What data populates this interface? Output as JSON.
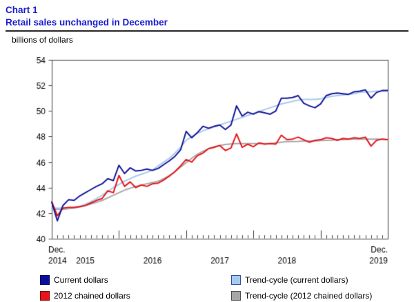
{
  "header": {
    "chart_label": "Chart 1",
    "title": "Retail sales unchanged in December"
  },
  "colors": {
    "title_blue": "#1c1cce",
    "axis": "#3c3c3c",
    "tick_text": "#000000",
    "rule": "#262626"
  },
  "legend": {
    "items": [
      {
        "label": "Current dollars",
        "swatch_color": "#0d0d9d",
        "swatch_border": "#00005a"
      },
      {
        "label": "Trend-cycle (current dollars)",
        "swatch_color": "#a6c9ee",
        "swatch_border": "#2f4f9e"
      },
      {
        "label": "2012 chained dollars",
        "swatch_color": "#e8131b",
        "swatch_border": "#7c0b0b"
      },
      {
        "label": "Trend-cycle (2012 chained dollars)",
        "swatch_color": "#a6a6a6",
        "swatch_border": "#4d4d4d"
      }
    ]
  },
  "chart_data": {
    "type": "line",
    "chart_label": "Chart 1",
    "title": "Retail sales unchanged in December",
    "ylabel": "billions of dollars",
    "ylim": [
      40,
      54
    ],
    "yticks": [
      40,
      42,
      44,
      46,
      48,
      50,
      52,
      54
    ],
    "grid": false,
    "legend_position": "bottom",
    "x_axis": {
      "start": "2014-12",
      "end": "2019-12",
      "points": 61,
      "minor_tick_every_months": 1,
      "major_tick_every_months": 12,
      "first_tick_label": [
        "Dec.",
        "2014"
      ],
      "last_tick_label": [
        "Dec.",
        "2019"
      ],
      "year_labels": [
        "2015",
        "2016",
        "2017",
        "2018"
      ]
    },
    "series": [
      {
        "name": "Current dollars",
        "color": "#14149c",
        "values": [
          42.85,
          41.4,
          42.6,
          43.05,
          43.0,
          43.35,
          43.6,
          43.85,
          44.1,
          44.3,
          44.7,
          44.55,
          45.75,
          45.1,
          45.55,
          45.3,
          45.35,
          45.45,
          45.35,
          45.5,
          45.8,
          46.1,
          46.45,
          46.95,
          48.4,
          47.9,
          48.3,
          48.8,
          48.65,
          48.8,
          48.9,
          48.55,
          48.9,
          50.4,
          49.6,
          49.9,
          49.75,
          49.95,
          49.85,
          49.75,
          50.0,
          51.0,
          51.0,
          51.05,
          51.2,
          50.6,
          50.4,
          50.25,
          50.55,
          51.2,
          51.35,
          51.4,
          51.35,
          51.3,
          51.5,
          51.55,
          51.65,
          51.0,
          51.45,
          51.6,
          51.6
        ]
      },
      {
        "name": "Trend-cycle (current dollars)",
        "color": "#a6c9ee",
        "values": [
          42.4,
          42.4,
          42.4,
          42.4,
          42.45,
          42.55,
          42.7,
          42.9,
          43.15,
          43.4,
          43.7,
          44.0,
          44.25,
          44.5,
          44.7,
          44.9,
          45.05,
          45.2,
          45.35,
          45.7,
          46.0,
          46.3,
          46.7,
          47.15,
          47.7,
          48.0,
          48.25,
          48.45,
          48.6,
          48.75,
          48.9,
          49.05,
          49.2,
          49.35,
          49.5,
          49.65,
          49.8,
          49.95,
          50.1,
          50.25,
          50.4,
          50.55,
          50.65,
          50.75,
          50.85,
          50.9,
          50.9,
          50.9,
          50.95,
          51.05,
          51.15,
          51.2,
          51.25,
          51.3,
          51.35,
          51.45,
          51.5,
          51.5,
          51.55,
          51.55,
          51.55
        ]
      },
      {
        "name": "2012 chained dollars",
        "color": "#e8131b",
        "values": [
          42.9,
          41.8,
          42.4,
          42.45,
          42.45,
          42.5,
          42.6,
          42.8,
          43.0,
          43.15,
          43.75,
          43.6,
          44.95,
          44.1,
          44.45,
          44.0,
          44.2,
          44.1,
          44.3,
          44.35,
          44.6,
          44.9,
          45.25,
          45.7,
          46.2,
          46.0,
          46.5,
          46.7,
          47.05,
          47.15,
          47.3,
          46.9,
          47.1,
          48.2,
          47.15,
          47.4,
          47.2,
          47.5,
          47.4,
          47.45,
          47.4,
          48.1,
          47.75,
          47.8,
          47.95,
          47.75,
          47.55,
          47.7,
          47.75,
          47.9,
          47.85,
          47.7,
          47.85,
          47.8,
          47.9,
          47.85,
          47.95,
          47.25,
          47.7,
          47.8,
          47.75
        ]
      },
      {
        "name": "Trend-cycle (2012 chained dollars)",
        "color": "#a6a6a6",
        "values": [
          42.35,
          42.3,
          42.3,
          42.35,
          42.4,
          42.5,
          42.6,
          42.72,
          42.85,
          43.0,
          43.2,
          43.4,
          43.6,
          43.8,
          43.95,
          44.1,
          44.2,
          44.3,
          44.4,
          44.5,
          44.7,
          44.95,
          45.25,
          45.6,
          45.95,
          46.3,
          46.6,
          46.85,
          47.05,
          47.2,
          47.3,
          47.38,
          47.42,
          47.45,
          47.45,
          47.45,
          47.45,
          47.45,
          47.45,
          47.45,
          47.5,
          47.55,
          47.6,
          47.6,
          47.62,
          47.65,
          47.65,
          47.65,
          47.68,
          47.7,
          47.72,
          47.75,
          47.75,
          47.78,
          47.8,
          47.8,
          47.8,
          47.8,
          47.8,
          47.78,
          47.75
        ]
      }
    ]
  }
}
